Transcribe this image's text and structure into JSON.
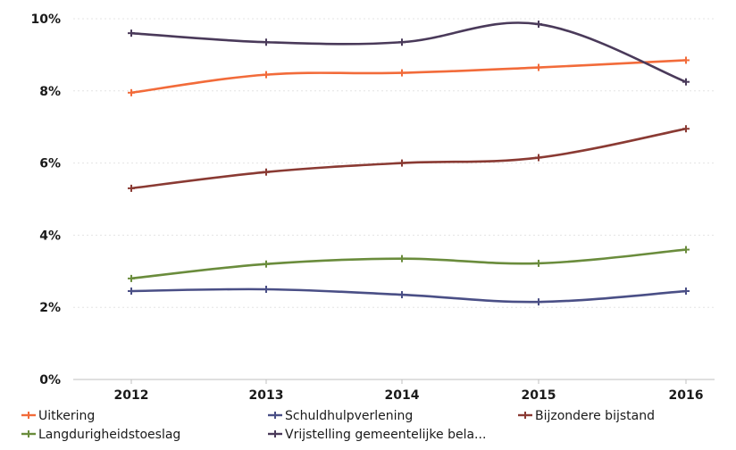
{
  "chart_data": {
    "type": "line",
    "x": [
      "2012",
      "2013",
      "2014",
      "2015",
      "2016"
    ],
    "ylim": [
      0,
      10
    ],
    "y_ticks": [
      "0%",
      "2%",
      "4%",
      "6%",
      "8%",
      "10%"
    ],
    "grid": true,
    "legend_position": "bottom",
    "series": [
      {
        "name": "Uitkering",
        "color": "#f26b3a",
        "values": [
          7.95,
          8.45,
          8.5,
          8.65,
          8.85
        ]
      },
      {
        "name": "Schuldhulpverlening",
        "color": "#4a4f86",
        "values": [
          2.45,
          2.5,
          2.35,
          2.15,
          2.45
        ]
      },
      {
        "name": "Bijzondere bijstand",
        "color": "#8a3a33",
        "values": [
          5.3,
          5.75,
          6.0,
          6.15,
          6.95
        ]
      },
      {
        "name": "Langdurigheidstoeslag",
        "color": "#6a8c3c",
        "values": [
          2.8,
          3.2,
          3.35,
          3.22,
          3.6
        ]
      },
      {
        "name": "Vrijstelling gemeentelijke bela...",
        "color": "#4a3a5a",
        "values": [
          9.6,
          9.35,
          9.35,
          9.85,
          8.25
        ]
      }
    ]
  }
}
